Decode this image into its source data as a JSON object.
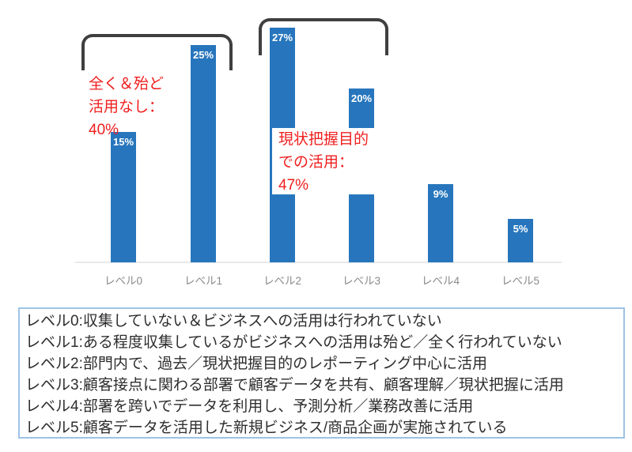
{
  "chart_data": {
    "type": "bar",
    "categories": [
      "レベル0",
      "レベル1",
      "レベル2",
      "レベル3",
      "レベル4",
      "レベル5"
    ],
    "values": [
      15,
      25,
      27,
      20,
      9,
      5
    ],
    "bar_labels": [
      "15%",
      "25%",
      "27%",
      "20%",
      "9%",
      "5%"
    ],
    "title": "",
    "xlabel": "",
    "ylabel": "",
    "ylim": [
      0,
      28
    ],
    "grid": false,
    "legend_position": "none",
    "annotations": [
      {
        "text": "全く＆殆ど\n活用なし：\n40%",
        "spans": [
          "レベル0",
          "レベル1"
        ],
        "value": "40%"
      },
      {
        "text": "現状把握目的\nでの活用：\n47%",
        "spans": [
          "レベル2",
          "レベル3"
        ],
        "value": "47%"
      }
    ]
  },
  "legend_box": {
    "lines": [
      "レベル0:収集していない＆ビジネスへの活用は行われていない",
      "レベル1:ある程度収集しているがビジネスへの活用は殆ど／全く行われていない",
      "レベル2:部門内で、過去／現状把握目的のレポーティング中心に活用",
      "レベル3:顧客接点に関わる部署で顧客データを共有、顧客理解／現状把握に活用",
      "レベル4:部署を跨いでデータを利用し、予測分析／業務改善に活用",
      "レベル5:顧客データを活用した新規ビジネス/商品企画が実施されている"
    ]
  },
  "colors": {
    "bar": "#2776bd",
    "annotation_red": "#f01e1e",
    "bracket": "#3f3f3f",
    "legend_border": "#9dc3e6",
    "axis_line": "#e9e9eb",
    "axis_label": "#8a8a8a"
  }
}
